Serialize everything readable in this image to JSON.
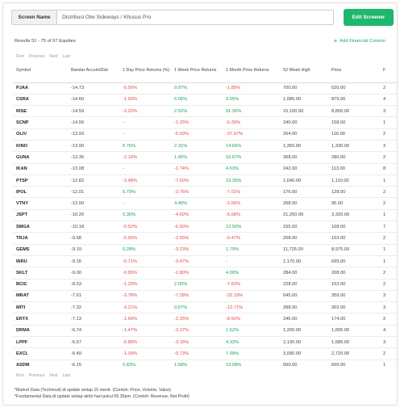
{
  "screener": {
    "name_label": "Screen Name",
    "name_value": "Distribusi Otw Sideways / Khusus Pro",
    "edit_button": "Edit Screener"
  },
  "results_text": "Results 51 - 75 of 97 Equities",
  "add_financial_column": "Add Financial Column",
  "pagination": {
    "first": "First",
    "previous": "Previous",
    "next": "Next",
    "last": "Last"
  },
  "columns": [
    "Symbol",
    "Bandar Accum/Dist",
    "1 Day Price Returns (%)",
    "1 Week Price Returns",
    "1 Month Price Returns",
    "52 Week High",
    "Price",
    "F"
  ],
  "rows": [
    {
      "symbol": "PJAA",
      "bandar": "-14.73",
      "day": "-0.56%",
      "week": "0.97%",
      "month": "-1.85%",
      "high52": "700.00",
      "price": "520.00",
      "f": "2"
    },
    {
      "symbol": "CSRA",
      "bandar": "-14.60",
      "day": "-1.60%",
      "week": "6.06%",
      "month": "3.55%",
      "high52": "1,085.00",
      "price": "875.00",
      "f": "4"
    },
    {
      "symbol": "RISE",
      "bandar": "-14.59",
      "day": "-2.22%",
      "week": "2.52%",
      "month": "91.30%",
      "high52": "15,100.00",
      "price": "8,800.00",
      "f": "3"
    },
    {
      "symbol": "SCNP",
      "bandar": "-14.56",
      "day": "-",
      "week": "-1.25%",
      "month": "-5.39%",
      "high52": "240.00",
      "price": "158.00",
      "f": "1"
    },
    {
      "symbol": "OLIV",
      "bandar": "-13.93",
      "day": "-",
      "week": "-5.69%",
      "month": "-37.97%",
      "high52": "204.00",
      "price": "116.00",
      "f": "2"
    },
    {
      "symbol": "KINO",
      "bandar": "-13.90",
      "day": "0.76%",
      "week": "2.31%",
      "month": "14.66%",
      "high52": "1,350.00",
      "price": "1,330.00",
      "f": "3"
    },
    {
      "symbol": "GUNA",
      "bandar": "-13.35",
      "day": "-2.10%",
      "week": "1.45%",
      "month": "16.67%",
      "high52": "368.00",
      "price": "280.00",
      "f": "2"
    },
    {
      "symbol": "IKAN",
      "bandar": "-13.08",
      "day": "-",
      "week": "-1.74%",
      "month": "4.63%",
      "high52": "242.00",
      "price": "113.00",
      "f": "8"
    },
    {
      "symbol": "PTSP",
      "bandar": "-12.82",
      "day": "-3.48%",
      "week": "-7.50%",
      "month": "19.35%",
      "high52": "1,640.00",
      "price": "1,110.00",
      "f": "1"
    },
    {
      "symbol": "IPOL",
      "bandar": "-12.01",
      "day": "0.79%",
      "week": "-3.76%",
      "month": "-7.01%",
      "high52": "176.00",
      "price": "128.00",
      "f": "2"
    },
    {
      "symbol": "VTNY",
      "bandar": "-12.00",
      "day": "-",
      "week": "4.40%",
      "month": "-2.06%",
      "high52": "268.00",
      "price": "95.00",
      "f": "2"
    },
    {
      "symbol": "JSPT",
      "bandar": "-10.26",
      "day": "0.30%",
      "week": "-4.60%",
      "month": "-5.68%",
      "high52": "21,250.00",
      "price": "3,320.00",
      "f": "1"
    },
    {
      "symbol": "SMGA",
      "bandar": "-10.18",
      "day": "-0.52%",
      "week": "-6.50%",
      "month": "12.50%",
      "high52": "155.00",
      "price": "108.00",
      "f": "7"
    },
    {
      "symbol": "TRJA",
      "bandar": "-9.58",
      "day": "-0.65%",
      "week": "-2.55%",
      "month": "-0.47%",
      "high52": "208.00",
      "price": "153.00",
      "f": "2"
    },
    {
      "symbol": "GEMS",
      "bandar": "-9.19",
      "day": "0.28%",
      "week": "-3.23%",
      "month": "1.70%",
      "high52": "11,725.00",
      "price": "8,975.00",
      "f": "1"
    },
    {
      "symbol": "INRU",
      "bandar": "-9.16",
      "day": "-0.71%",
      "week": "-3.47%",
      "month": "-",
      "high52": "1,170.00",
      "price": "695.00",
      "f": "1"
    },
    {
      "symbol": "SKLT",
      "bandar": "-9.00",
      "day": "-0.95%",
      "week": "-2.80%",
      "month": "4.00%",
      "high52": "284.00",
      "price": "208.00",
      "f": "2"
    },
    {
      "symbol": "BCIC",
      "bandar": "-8.53",
      "day": "-1.29%",
      "week": "2.00%",
      "month": "-7.83%",
      "high52": "228.00",
      "price": "153.00",
      "f": "2"
    },
    {
      "symbol": "MRAT",
      "bandar": "-7.61",
      "day": "-3.78%",
      "week": "-7.28%",
      "month": "-32.19%",
      "high52": "645.00",
      "price": "356.00",
      "f": "3"
    },
    {
      "symbol": "MITI",
      "bandar": "-7.32",
      "day": "-3.21%",
      "week": "0.67%",
      "month": "-13.71%",
      "high52": "398.00",
      "price": "302.00",
      "f": "3"
    },
    {
      "symbol": "ERTX",
      "bandar": "-7.13",
      "day": "-1.69%",
      "week": "-2.25%",
      "month": "-8.50%",
      "high52": "246.00",
      "price": "174.00",
      "f": "2"
    },
    {
      "symbol": "DRMA",
      "bandar": "-6.74",
      "day": "-1.47%",
      "week": "-3.37%",
      "month": "1.52%",
      "high52": "1,200.00",
      "price": "1,005.00",
      "f": "4"
    },
    {
      "symbol": "LPPF",
      "bandar": "-6.67",
      "day": "-0.88%",
      "week": "-3.16%",
      "month": "4.33%",
      "high52": "2,130.00",
      "price": "1,685.00",
      "f": "3"
    },
    {
      "symbol": "EXCL",
      "bandar": "-6.49",
      "day": "-1.09%",
      "week": "-0.73%",
      "month": "7.09%",
      "high52": "3,090.00",
      "price": "2,720.00",
      "f": "2"
    },
    {
      "symbol": "ASDM",
      "bandar": "-6.15",
      "day": "0.83%",
      "week": "1.68%",
      "month": "13.08%",
      "high52": "660.00",
      "price": "605.00",
      "f": "1"
    }
  ],
  "notes": [
    "*Market Data (Technical) di update setiap 15 menit. (Contoh: Price, Volume, Value)",
    "*Fundamental Data di update setiap akhir hari pukul 06.30pm. (Contoh: Revenue, Net Profit)"
  ],
  "colors": {
    "accent": "#1fb76b",
    "negative": "#e04a4a",
    "positive": "#18a35e"
  }
}
